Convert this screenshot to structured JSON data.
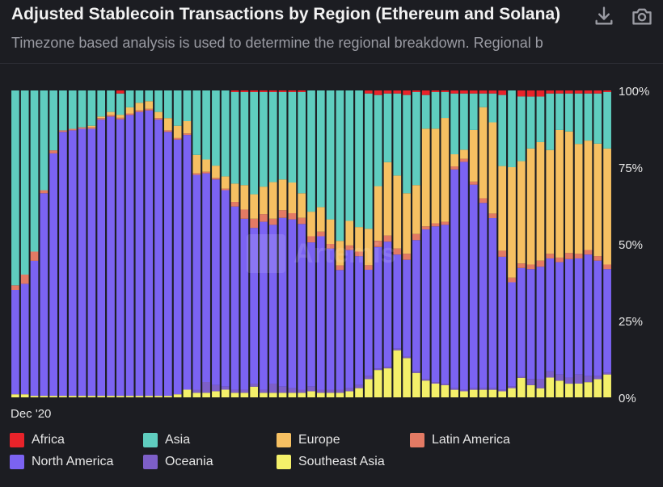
{
  "header": {
    "title": "Adjusted Stablecoin Transactions by Region (Ethereum and Solana)",
    "subtitle": "Timezone based analysis is used to determine the regional breakdown. Regional b",
    "download_icon": "download-icon",
    "camera_icon": "camera-icon"
  },
  "watermark": {
    "text": "Artemis"
  },
  "chart_data": {
    "type": "bar",
    "stacked": true,
    "normalized": true,
    "x_start_label": "Dec '20",
    "yticks": [
      "100%",
      "75%",
      "50%",
      "25%",
      "0%"
    ],
    "ylim": [
      0,
      100
    ],
    "legend_position": "bottom",
    "series": [
      {
        "name": "Southeast Asia",
        "color": "#f4f06a",
        "values": [
          1,
          1,
          0.5,
          0.5,
          0.5,
          0.5,
          0.5,
          0.5,
          0.5,
          0.5,
          0.5,
          0.5,
          0.5,
          0.5,
          0.5,
          0.5,
          0.5,
          1,
          2.5,
          1.5,
          1.5,
          2,
          2.5,
          1.5,
          1.5,
          3.5,
          1.5,
          1.5,
          1.5,
          1.5,
          1.5,
          2,
          1.5,
          1.5,
          1.5,
          2,
          3,
          6,
          9,
          9.5,
          15.5,
          13,
          8,
          5.5,
          4.5,
          4,
          2.5,
          2,
          2.5,
          2.5,
          2.5,
          2,
          3,
          6.5,
          4,
          3,
          6.5,
          5.5,
          4.5,
          4.5,
          5,
          6,
          7.5
        ]
      },
      {
        "name": "Oceania",
        "color": "#7d5fc8",
        "values": [
          0,
          0,
          0,
          0,
          0,
          0,
          0,
          0,
          0,
          0,
          0,
          0,
          0,
          0,
          0,
          0,
          0,
          0,
          0,
          1,
          3.5,
          2,
          1,
          1,
          1,
          1,
          1,
          3,
          2,
          1.5,
          1,
          1.5,
          1,
          1,
          1,
          1,
          1,
          1,
          0.5,
          0.5,
          0.5,
          0.5,
          0.5,
          0.5,
          0.5,
          0.5,
          0.5,
          0.5,
          0.5,
          0.5,
          0.5,
          0.5,
          0.5,
          0.5,
          2,
          3,
          2,
          2,
          2,
          3,
          2,
          1,
          0.5
        ]
      },
      {
        "name": "North America",
        "color": "#7b63f2",
        "values": [
          34,
          36,
          44,
          66,
          79,
          86,
          86.5,
          87,
          87,
          90,
          91,
          91,
          91.5,
          92.5,
          93,
          90,
          86,
          83,
          83,
          70,
          68,
          67,
          64,
          60,
          56,
          51,
          55,
          52,
          55,
          55,
          54,
          47,
          50,
          46,
          39,
          45,
          42,
          35,
          40,
          41,
          31,
          32,
          43,
          49,
          51,
          52,
          72,
          75,
          67,
          61,
          56,
          44,
          34,
          36,
          36,
          37,
          37,
          37,
          39,
          38,
          40,
          38,
          34
        ]
      },
      {
        "name": "Latin America",
        "color": "#e37a64",
        "values": [
          1.5,
          3,
          3,
          1,
          1,
          0.5,
          0.5,
          0.5,
          0.5,
          0.5,
          0.5,
          0.5,
          0.5,
          0.5,
          0.5,
          0.5,
          0.5,
          0.5,
          0.5,
          0.5,
          0.5,
          0.5,
          0.5,
          1.5,
          3,
          3,
          2.5,
          2,
          2.5,
          2,
          2,
          2,
          1.5,
          1.5,
          1.5,
          1.5,
          1.5,
          1.5,
          2,
          2,
          2,
          2,
          2,
          1,
          1,
          1,
          1,
          1,
          1,
          1.5,
          1.5,
          2,
          1.5,
          1.5,
          1.5,
          2,
          1.5,
          1.5,
          2,
          1.5,
          1.5,
          1.5,
          1.5
        ]
      },
      {
        "name": "Europe",
        "color": "#f6c062",
        "values": [
          0,
          0,
          0,
          0,
          0,
          0,
          0,
          0,
          0.5,
          0.5,
          1,
          1,
          2,
          2.5,
          2.5,
          2,
          4,
          4,
          4,
          6,
          4,
          4,
          4,
          6,
          8,
          8,
          9,
          12,
          10,
          10,
          8,
          8,
          8,
          8,
          8,
          8,
          8,
          12,
          18,
          24,
          24,
          20,
          16,
          32,
          31,
          34,
          4,
          3,
          17,
          30,
          30,
          28,
          36,
          34,
          38,
          39,
          34,
          42,
          40,
          36,
          36,
          37,
          38
        ]
      },
      {
        "name": "Asia",
        "color": "#5fcdbf",
        "values": [
          63.5,
          60,
          52.5,
          32.5,
          19.5,
          13,
          12.5,
          12,
          11.5,
          8.5,
          7,
          7,
          5.5,
          4,
          3.5,
          7,
          9,
          11.5,
          10,
          21,
          22.5,
          24.5,
          28,
          30,
          30.5,
          33.5,
          31,
          29.5,
          28.5,
          29.5,
          33,
          39.5,
          38,
          42,
          49,
          42.5,
          44.5,
          44.5,
          30,
          22.5,
          27,
          32.5,
          30.5,
          11,
          12,
          8.5,
          20,
          18.5,
          12,
          4.5,
          9.5,
          23.5,
          25,
          21.5,
          17,
          15,
          18.5,
          12,
          12.5,
          16.5,
          15.5,
          16.5,
          18.5
        ]
      },
      {
        "name": "Africa",
        "color": "#e8232a",
        "values": [
          0,
          0,
          0,
          0,
          0,
          0,
          0,
          0,
          0,
          0,
          0,
          1,
          0,
          0,
          0,
          0,
          0,
          0,
          0,
          0,
          0,
          0,
          0,
          0.5,
          0.5,
          0.5,
          0.5,
          0.5,
          0.5,
          0.5,
          0.5,
          0,
          0,
          0,
          0,
          0,
          0,
          1,
          1.5,
          1,
          1,
          1.5,
          0.5,
          1.5,
          0.5,
          0.5,
          1,
          1,
          1,
          1,
          1,
          1.5,
          0,
          2,
          2,
          2,
          1,
          1,
          1,
          1,
          1,
          1,
          0.5
        ]
      }
    ],
    "legend": [
      {
        "label": "Africa",
        "color": "#e8232a"
      },
      {
        "label": "Asia",
        "color": "#5fcdbf"
      },
      {
        "label": "Europe",
        "color": "#f6c062"
      },
      {
        "label": "Latin America",
        "color": "#e37a64"
      },
      {
        "label": "North America",
        "color": "#7b63f2"
      },
      {
        "label": "Oceania",
        "color": "#7d5fc8"
      },
      {
        "label": "Southeast Asia",
        "color": "#f4f06a"
      }
    ]
  }
}
